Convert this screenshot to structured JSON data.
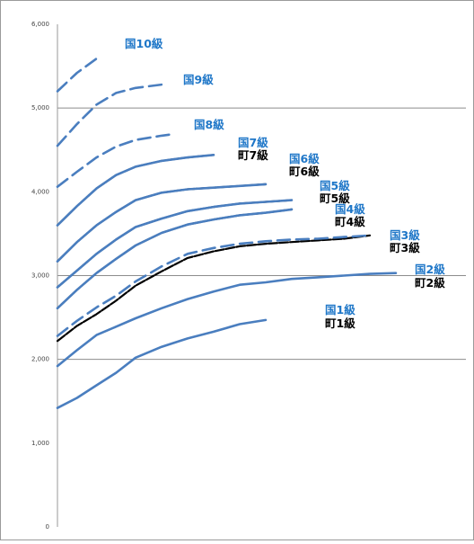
{
  "chart_data": {
    "type": "line",
    "title": "",
    "xlabel": "",
    "ylabel": "",
    "ylim": [
      0,
      6000
    ],
    "yticks": [
      0,
      1000,
      2000,
      3000,
      4000,
      5000,
      6000
    ],
    "ytick_labels": [
      "0",
      "1,000",
      "2,000",
      "3,000",
      "4,000",
      "5,000",
      "6,000"
    ],
    "grid": "horizontal at 2,000 / 3,000 / 5,000",
    "legend": "inline labels at line ends",
    "colors": {
      "kuni": "#4a7ebf",
      "machi": "#000000",
      "kuni_label": "#1f77c8",
      "machi_label": "#000000"
    },
    "series": [
      {
        "name": "国1級",
        "group": "kuni",
        "style": "solid",
        "x": [
          0,
          3,
          6,
          9,
          12,
          16,
          20,
          24,
          28,
          32
        ],
        "values": [
          1420,
          1540,
          1690,
          1840,
          2020,
          2150,
          2250,
          2330,
          2420,
          2470
        ]
      },
      {
        "name": "町1級",
        "group": "machi",
        "style": "solid",
        "x": [],
        "values": []
      },
      {
        "name": "国2級",
        "group": "kuni",
        "style": "solid",
        "x": [
          0,
          3,
          6,
          9,
          12,
          16,
          20,
          24,
          28,
          32,
          36,
          40,
          44,
          48,
          52
        ],
        "values": [
          1920,
          2110,
          2290,
          2390,
          2490,
          2610,
          2720,
          2810,
          2890,
          2920,
          2960,
          2980,
          3000,
          3020,
          3030
        ]
      },
      {
        "name": "町2級",
        "group": "machi",
        "style": "solid",
        "x": [],
        "values": []
      },
      {
        "name": "国3級",
        "group": "kuni",
        "style": "dashed",
        "x": [
          0,
          3,
          6,
          9,
          12,
          16,
          20,
          24,
          28,
          32,
          36,
          40,
          44,
          48
        ],
        "values": [
          2280,
          2460,
          2620,
          2760,
          2930,
          3110,
          3260,
          3330,
          3380,
          3410,
          3430,
          3440,
          3460,
          3480
        ]
      },
      {
        "name": "町3級",
        "group": "machi",
        "style": "solid",
        "x": [
          0,
          3,
          6,
          9,
          12,
          16,
          20,
          24,
          28,
          32,
          36,
          40,
          44,
          48
        ],
        "values": [
          2220,
          2400,
          2540,
          2700,
          2880,
          3050,
          3210,
          3290,
          3350,
          3380,
          3400,
          3420,
          3440,
          3480
        ]
      },
      {
        "name": "国4級",
        "group": "kuni",
        "style": "solid",
        "x": [
          0,
          3,
          6,
          9,
          12,
          16,
          20,
          24,
          28,
          32,
          36
        ],
        "values": [
          2610,
          2830,
          3030,
          3200,
          3360,
          3510,
          3610,
          3670,
          3720,
          3750,
          3790
        ]
      },
      {
        "name": "町4級",
        "group": "machi",
        "style": "solid",
        "x": [
          0,
          3,
          6,
          9,
          12,
          16,
          20,
          24,
          28,
          32,
          36
        ],
        "values": [
          2610,
          2830,
          3030,
          3200,
          3360,
          3510,
          3610,
          3670,
          3720,
          3750,
          3790
        ]
      },
      {
        "name": "国5級",
        "group": "kuni",
        "style": "solid",
        "x": [
          0,
          3,
          6,
          9,
          12,
          16,
          20,
          24,
          28,
          32,
          36
        ],
        "values": [
          2860,
          3060,
          3260,
          3430,
          3580,
          3680,
          3770,
          3820,
          3860,
          3880,
          3900
        ]
      },
      {
        "name": "町5級",
        "group": "machi",
        "style": "solid",
        "x": [
          0,
          3,
          6,
          9,
          12,
          16,
          20,
          24,
          28,
          32,
          36
        ],
        "values": [
          2860,
          3060,
          3260,
          3430,
          3580,
          3680,
          3770,
          3820,
          3860,
          3880,
          3900
        ]
      },
      {
        "name": "国6級",
        "group": "kuni",
        "style": "solid",
        "x": [
          0,
          3,
          6,
          9,
          12,
          16,
          20,
          24,
          28,
          32
        ],
        "values": [
          3170,
          3400,
          3600,
          3760,
          3900,
          3990,
          4030,
          4050,
          4070,
          4090
        ]
      },
      {
        "name": "町6級",
        "group": "machi",
        "style": "solid",
        "x": [
          0,
          3,
          6,
          9,
          12,
          16,
          20,
          24,
          28,
          32
        ],
        "values": [
          3170,
          3400,
          3600,
          3760,
          3900,
          3990,
          4030,
          4050,
          4070,
          4090
        ]
      },
      {
        "name": "国7級",
        "group": "kuni",
        "style": "solid",
        "x": [
          0,
          3,
          6,
          9,
          12,
          16,
          20,
          24
        ],
        "values": [
          3600,
          3830,
          4040,
          4200,
          4300,
          4370,
          4410,
          4440
        ]
      },
      {
        "name": "町7級",
        "group": "machi",
        "style": "solid",
        "x": [
          0,
          3,
          6,
          9,
          12,
          16,
          20,
          24
        ],
        "values": [
          3600,
          3830,
          4040,
          4200,
          4300,
          4370,
          4410,
          4440
        ]
      },
      {
        "name": "国8級",
        "group": "kuni",
        "style": "dashed",
        "x": [
          0,
          3,
          6,
          9,
          12,
          16,
          18
        ],
        "values": [
          4060,
          4240,
          4410,
          4540,
          4620,
          4670,
          4690
        ]
      },
      {
        "name": "国9級",
        "group": "kuni",
        "style": "dashed",
        "x": [
          0,
          3,
          6,
          9,
          12,
          16
        ],
        "values": [
          4550,
          4810,
          5040,
          5180,
          5240,
          5280
        ]
      },
      {
        "name": "国10級",
        "group": "kuni",
        "style": "dashed",
        "x": [
          0,
          3,
          6
        ],
        "values": [
          5200,
          5420,
          5590
        ]
      }
    ]
  }
}
